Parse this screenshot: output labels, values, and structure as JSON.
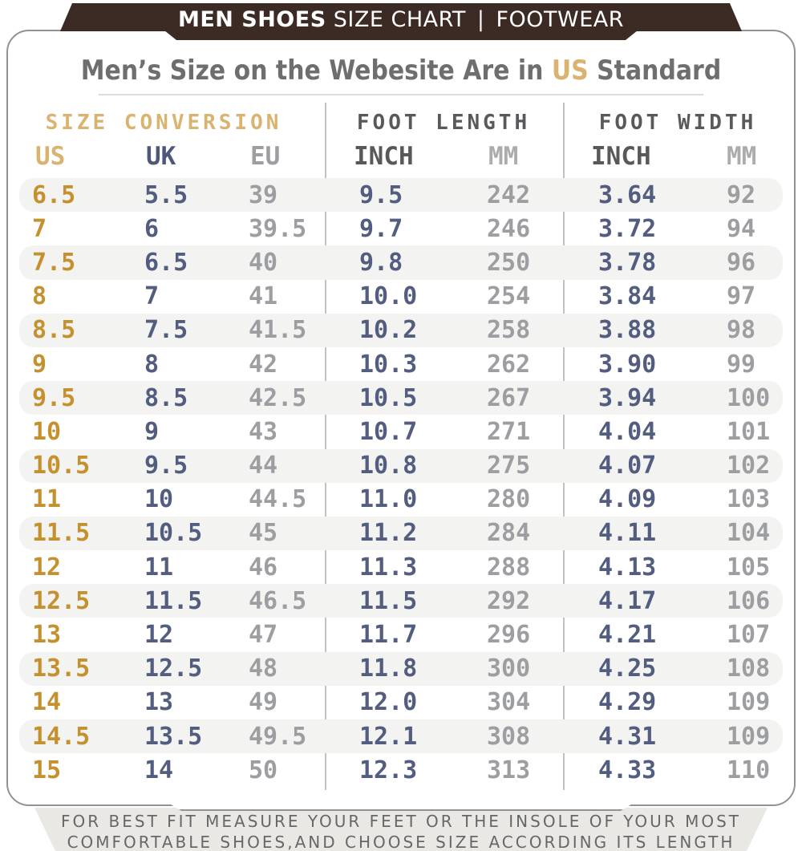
{
  "banner": {
    "title_bold": "MEN SHOES",
    "title_rest": " SIZE CHART",
    "separator": "|",
    "right": "FOOTWEAR"
  },
  "title": {
    "prefix": "Men’s Size on the Webesite Are in ",
    "highlight": "US",
    "suffix": " Standard"
  },
  "footer": {
    "line1": "FOR BEST FIT MEASURE YOUR FEET OR THE INSOLE OF YOUR MOST",
    "line2": "COMFORTABLE SHOES,AND CHOOSE SIZE ACCORDING ITS LENGTH"
  },
  "colors": {
    "banner_brown": "#3b2b24",
    "tan_accent": "#d9b36f",
    "gold_values": "#c5912f",
    "navy_values": "#535d80",
    "gray_values": "#9c9ea1",
    "dark_header_gray": "#58595b",
    "light_header_gray": "#aaacae",
    "title_gray": "#6e6e6e",
    "stripe": "#f3f3f2",
    "card_border": "#929292",
    "footer_bg": "#e9e8e5"
  },
  "chart_data": {
    "type": "table",
    "title": "Men’s Size on the Webesite Are in US Standard",
    "groups": [
      "SIZE CONVERSION",
      "FOOT LENGTH",
      "FOOT WIDTH"
    ],
    "columns": [
      "US",
      "UK",
      "EU",
      "INCH",
      "MM",
      "INCH",
      "MM"
    ],
    "column_keys": [
      "us",
      "uk",
      "eu",
      "length-inch",
      "length-mm",
      "width-inch",
      "width-mm"
    ],
    "rows": [
      [
        "6.5",
        "5.5",
        "39",
        "9.5",
        "242",
        "3.64",
        "92"
      ],
      [
        "7",
        "6",
        "39.5",
        "9.7",
        "246",
        "3.72",
        "94"
      ],
      [
        "7.5",
        "6.5",
        "40",
        "9.8",
        "250",
        "3.78",
        "96"
      ],
      [
        "8",
        "7",
        "41",
        "10.0",
        "254",
        "3.84",
        "97"
      ],
      [
        "8.5",
        "7.5",
        "41.5",
        "10.2",
        "258",
        "3.88",
        "98"
      ],
      [
        "9",
        "8",
        "42",
        "10.3",
        "262",
        "3.90",
        "99"
      ],
      [
        "9.5",
        "8.5",
        "42.5",
        "10.5",
        "267",
        "3.94",
        "100"
      ],
      [
        "10",
        "9",
        "43",
        "10.7",
        "271",
        "4.04",
        "101"
      ],
      [
        "10.5",
        "9.5",
        "44",
        "10.8",
        "275",
        "4.07",
        "102"
      ],
      [
        "11",
        "10",
        "44.5",
        "11.0",
        "280",
        "4.09",
        "103"
      ],
      [
        "11.5",
        "10.5",
        "45",
        "11.2",
        "284",
        "4.11",
        "104"
      ],
      [
        "12",
        "11",
        "46",
        "11.3",
        "288",
        "4.13",
        "105"
      ],
      [
        "12.5",
        "11.5",
        "46.5",
        "11.5",
        "292",
        "4.17",
        "106"
      ],
      [
        "13",
        "12",
        "47",
        "11.7",
        "296",
        "4.21",
        "107"
      ],
      [
        "13.5",
        "12.5",
        "48",
        "11.8",
        "300",
        "4.25",
        "108"
      ],
      [
        "14",
        "13",
        "49",
        "12.0",
        "304",
        "4.29",
        "109"
      ],
      [
        "14.5",
        "13.5",
        "49.5",
        "12.1",
        "308",
        "4.31",
        "109"
      ],
      [
        "15",
        "14",
        "50",
        "12.3",
        "313",
        "4.33",
        "110"
      ]
    ]
  }
}
